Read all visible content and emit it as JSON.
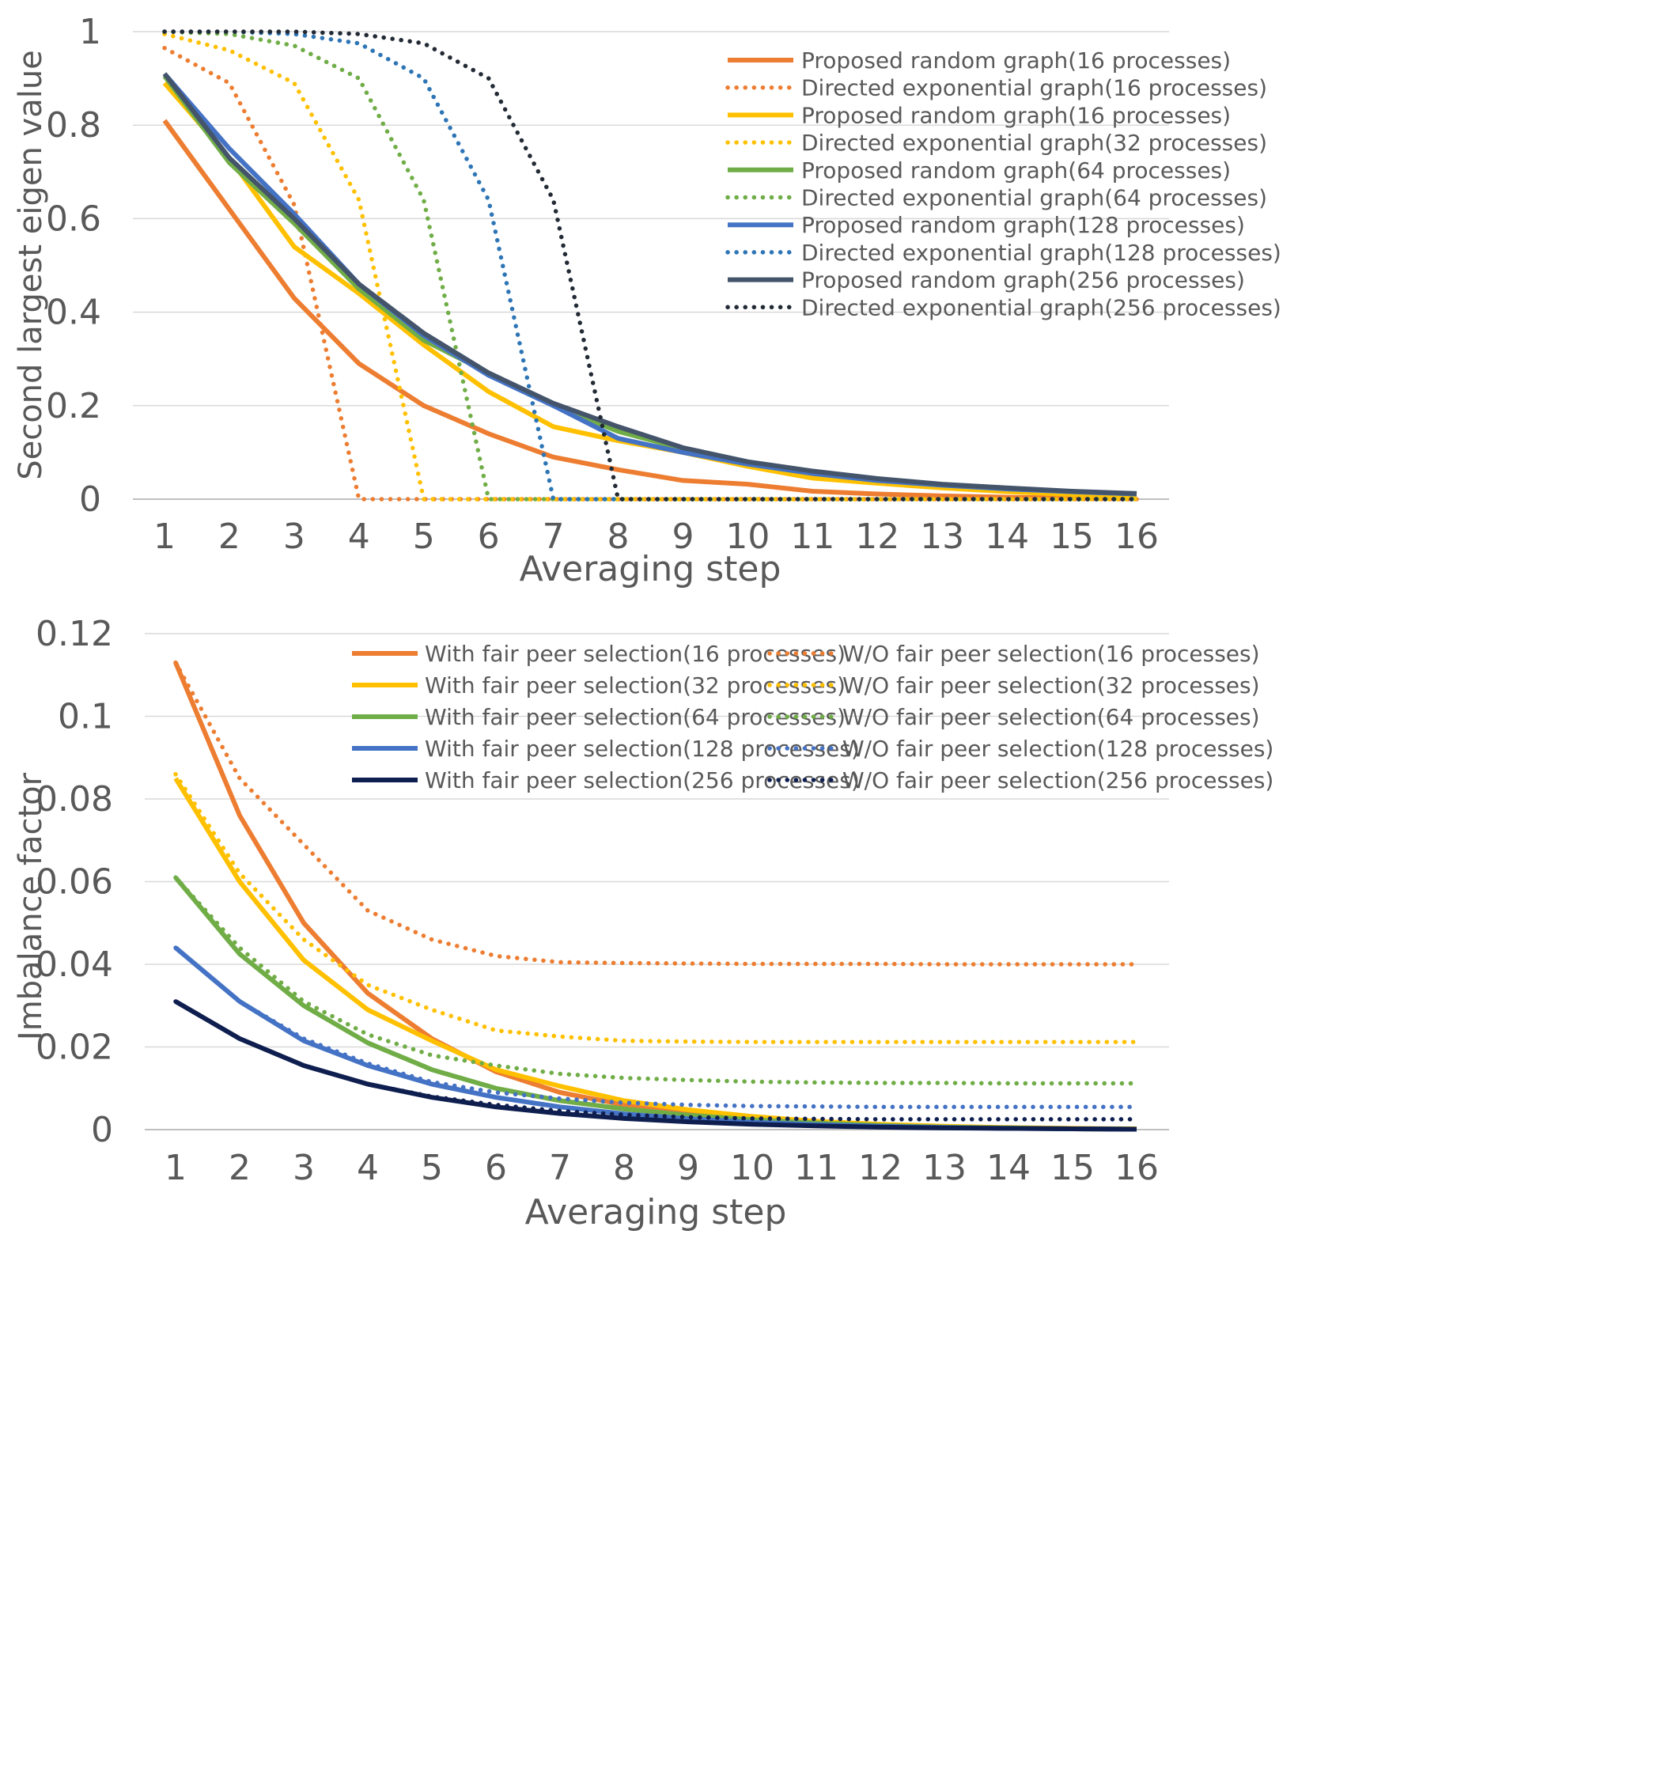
{
  "chart_data": [
    {
      "type": "line",
      "title": "",
      "xlabel": "Averaging step",
      "ylabel": "Second largest eigen value",
      "x": [
        1,
        2,
        3,
        4,
        5,
        6,
        7,
        8,
        9,
        10,
        11,
        12,
        13,
        14,
        15,
        16
      ],
      "ylim": [
        0,
        1
      ],
      "yticks": [
        "0",
        "0.2",
        "0.4",
        "0.6",
        "0.8",
        "1"
      ],
      "xticks": [
        "1",
        "2",
        "3",
        "4",
        "5",
        "6",
        "7",
        "8",
        "9",
        "10",
        "11",
        "12",
        "13",
        "14",
        "15",
        "16"
      ],
      "grid": true,
      "legend_position": "top-right",
      "series": [
        {
          "name": "Proposed random graph(16 processes)",
          "color": "#ED7D31",
          "dash": "solid",
          "values": [
            0.81,
            0.62,
            0.43,
            0.29,
            0.2,
            0.14,
            0.09,
            0.063,
            0.04,
            0.032,
            0.017,
            0.011,
            0.007,
            0.004,
            0.002,
            0.001
          ]
        },
        {
          "name": "Directed exponential graph(16 processes)",
          "color": "#ED7D31",
          "dash": "dot",
          "values": [
            0.965,
            0.89,
            0.63,
            0,
            0,
            0,
            0,
            0,
            0,
            0,
            0,
            0,
            0,
            0,
            0,
            0
          ]
        },
        {
          "name": "Proposed random graph(16 processes)",
          "color": "#FFC000",
          "dash": "solid",
          "values": [
            0.89,
            0.73,
            0.54,
            0.44,
            0.33,
            0.23,
            0.155,
            0.125,
            0.1,
            0.07,
            0.045,
            0.034,
            0.024,
            0.016,
            0.01,
            0.006
          ]
        },
        {
          "name": "Directed exponential graph(32 processes)",
          "color": "#FFC000",
          "dash": "dot",
          "values": [
            0.995,
            0.96,
            0.89,
            0.64,
            0,
            0,
            0,
            0,
            0,
            0,
            0,
            0,
            0,
            0,
            0,
            0
          ]
        },
        {
          "name": "Proposed random graph(64 processes)",
          "color": "#70AD47",
          "dash": "solid",
          "values": [
            0.905,
            0.72,
            0.59,
            0.45,
            0.34,
            0.27,
            0.2,
            0.145,
            0.108,
            0.075,
            0.055,
            0.04,
            0.03,
            0.022,
            0.016,
            0.011
          ]
        },
        {
          "name": "Directed exponential graph(64 processes)",
          "color": "#70AD47",
          "dash": "dot",
          "values": [
            1,
            0.995,
            0.97,
            0.9,
            0.64,
            0,
            0,
            0,
            0,
            0,
            0,
            0,
            0,
            0,
            0,
            0
          ]
        },
        {
          "name": "Proposed random graph(128 processes)",
          "color": "#4472C4",
          "dash": "solid",
          "values": [
            0.91,
            0.75,
            0.61,
            0.46,
            0.35,
            0.265,
            0.2,
            0.13,
            0.1,
            0.075,
            0.055,
            0.04,
            0.03,
            0.022,
            0.016,
            0.011
          ]
        },
        {
          "name": "Directed exponential graph(128 processes)",
          "color": "#2E75B6",
          "dash": "dot",
          "values": [
            1,
            1,
            0.995,
            0.975,
            0.9,
            0.64,
            0,
            0,
            0,
            0,
            0,
            0,
            0,
            0,
            0,
            0
          ]
        },
        {
          "name": "Proposed random graph(256 processes)",
          "color": "#44546A",
          "dash": "solid",
          "values": [
            0.91,
            0.73,
            0.6,
            0.46,
            0.355,
            0.27,
            0.205,
            0.155,
            0.11,
            0.08,
            0.06,
            0.044,
            0.032,
            0.024,
            0.017,
            0.012
          ]
        },
        {
          "name": "Directed exponential graph(256 processes)",
          "color": "#222A35",
          "dash": "dot",
          "values": [
            1,
            1,
            1,
            0.995,
            0.975,
            0.9,
            0.64,
            0,
            0,
            0,
            0,
            0,
            0,
            0,
            0,
            0
          ]
        }
      ]
    },
    {
      "type": "line",
      "title": "",
      "xlabel": "Averaging step",
      "ylabel": "Imbalance factor",
      "x": [
        1,
        2,
        3,
        4,
        5,
        6,
        7,
        8,
        9,
        10,
        11,
        12,
        13,
        14,
        15,
        16
      ],
      "ylim": [
        0,
        0.12
      ],
      "yticks": [
        "0",
        "0.02",
        "0.04",
        "0.06",
        "0.08",
        "0.1",
        "0.12"
      ],
      "xticks": [
        "1",
        "2",
        "3",
        "4",
        "5",
        "6",
        "7",
        "8",
        "9",
        "10",
        "11",
        "12",
        "13",
        "14",
        "15",
        "16"
      ],
      "grid": true,
      "legend_position": "top-right",
      "series": [
        {
          "name": "With fair peer selection(16 processes)",
          "color": "#ED7D31",
          "dash": "solid",
          "values": [
            0.113,
            0.076,
            0.05,
            0.033,
            0.022,
            0.014,
            0.009,
            0.006,
            0.004,
            0.0025,
            0.0015,
            0.001,
            0.0007,
            0.0004,
            0.0002,
            0.0001
          ]
        },
        {
          "name": "W/O fair peer selection(16 processes)",
          "color": "#ED7D31",
          "dash": "dot",
          "values": [
            0.113,
            0.085,
            0.069,
            0.053,
            0.046,
            0.042,
            0.0405,
            0.0403,
            0.0402,
            0.0401,
            0.0401,
            0.0401,
            0.04,
            0.04,
            0.04,
            0.04
          ]
        },
        {
          "name": "With fair peer selection(32 processes)",
          "color": "#FFC000",
          "dash": "solid",
          "values": [
            0.085,
            0.06,
            0.041,
            0.029,
            0.0215,
            0.0145,
            0.0105,
            0.007,
            0.0048,
            0.0032,
            0.002,
            0.0013,
            0.0008,
            0.0005,
            0.0003,
            0.0002
          ]
        },
        {
          "name": "W/O fair peer selection(32 processes)",
          "color": "#FFC000",
          "dash": "dot",
          "values": [
            0.086,
            0.062,
            0.046,
            0.035,
            0.029,
            0.024,
            0.0225,
            0.0215,
            0.0213,
            0.0212,
            0.0212,
            0.0212,
            0.0212,
            0.0212,
            0.0212,
            0.0212
          ]
        },
        {
          "name": "With fair peer selection(64 processes)",
          "color": "#70AD47",
          "dash": "solid",
          "values": [
            0.061,
            0.0425,
            0.03,
            0.021,
            0.0145,
            0.01,
            0.007,
            0.005,
            0.0035,
            0.0024,
            0.0016,
            0.001,
            0.0006,
            0.0004,
            0.0002,
            0.0001
          ]
        },
        {
          "name": "W/O fair peer selection(64 processes)",
          "color": "#70AD47",
          "dash": "dot",
          "values": [
            0.061,
            0.044,
            0.031,
            0.023,
            0.018,
            0.0155,
            0.0135,
            0.0125,
            0.012,
            0.0116,
            0.0114,
            0.0113,
            0.0113,
            0.0112,
            0.0112,
            0.0112
          ]
        },
        {
          "name": "With fair peer selection(128 processes)",
          "color": "#4472C4",
          "dash": "solid",
          "values": [
            0.044,
            0.031,
            0.0215,
            0.0155,
            0.011,
            0.0078,
            0.0055,
            0.0038,
            0.0026,
            0.0018,
            0.0012,
            0.0008,
            0.0005,
            0.0003,
            0.0002,
            0.0001
          ]
        },
        {
          "name": "W/O fair peer selection(128 processes)",
          "color": "#4472C4",
          "dash": "dot",
          "values": [
            0.044,
            0.031,
            0.022,
            0.016,
            0.0115,
            0.009,
            0.0075,
            0.0065,
            0.006,
            0.0057,
            0.0056,
            0.0055,
            0.0055,
            0.0055,
            0.0055,
            0.0055
          ]
        },
        {
          "name": "With fair peer selection(256 processes)",
          "color": "#0E1E4F",
          "dash": "solid",
          "values": [
            0.031,
            0.022,
            0.0155,
            0.011,
            0.0078,
            0.0055,
            0.0039,
            0.0027,
            0.0019,
            0.0013,
            0.0009,
            0.0006,
            0.0004,
            0.0003,
            0.0002,
            0.0001
          ]
        },
        {
          "name": "W/O fair peer selection(256 processes)",
          "color": "#0E1E4F",
          "dash": "dot",
          "values": [
            0.031,
            0.022,
            0.0155,
            0.011,
            0.008,
            0.006,
            0.0045,
            0.0036,
            0.003,
            0.0027,
            0.0026,
            0.0025,
            0.0025,
            0.0025,
            0.0025,
            0.0025
          ]
        }
      ]
    }
  ]
}
